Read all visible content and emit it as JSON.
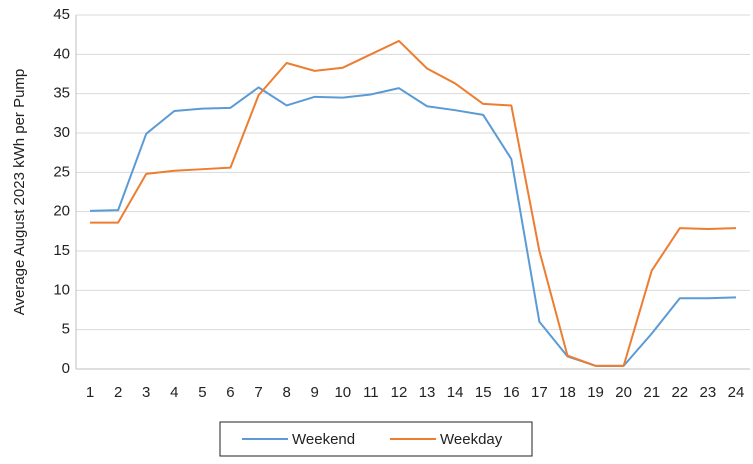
{
  "chart_data": {
    "type": "line",
    "y_label": "Average August 2023 kWh per Pump",
    "categories": [
      "1",
      "2",
      "3",
      "4",
      "5",
      "6",
      "7",
      "8",
      "9",
      "10",
      "11",
      "12",
      "13",
      "14",
      "15",
      "16",
      "17",
      "18",
      "19",
      "20",
      "21",
      "22",
      "23",
      "24"
    ],
    "series": [
      {
        "name": "Weekend",
        "color": "#5b9bd5",
        "values": [
          20.1,
          20.2,
          29.9,
          32.8,
          33.1,
          33.2,
          35.8,
          33.5,
          34.6,
          34.5,
          34.9,
          35.7,
          33.4,
          32.9,
          32.3,
          26.7,
          6.0,
          1.6,
          0.4,
          0.4,
          4.5,
          9.0,
          9.0,
          9.1
        ]
      },
      {
        "name": "Weekday",
        "color": "#ed7d31",
        "values": [
          18.6,
          18.6,
          24.8,
          25.2,
          25.4,
          25.6,
          34.8,
          38.9,
          37.9,
          38.3,
          40.0,
          41.7,
          38.2,
          36.3,
          33.7,
          33.5,
          15.0,
          1.7,
          0.4,
          0.4,
          12.5,
          17.9,
          17.8,
          17.9
        ]
      }
    ],
    "ylim": [
      0,
      45
    ],
    "yticks": [
      0,
      5,
      10,
      15,
      20,
      25,
      30,
      35,
      40,
      45
    ],
    "grid": true,
    "legend": "bottom"
  }
}
